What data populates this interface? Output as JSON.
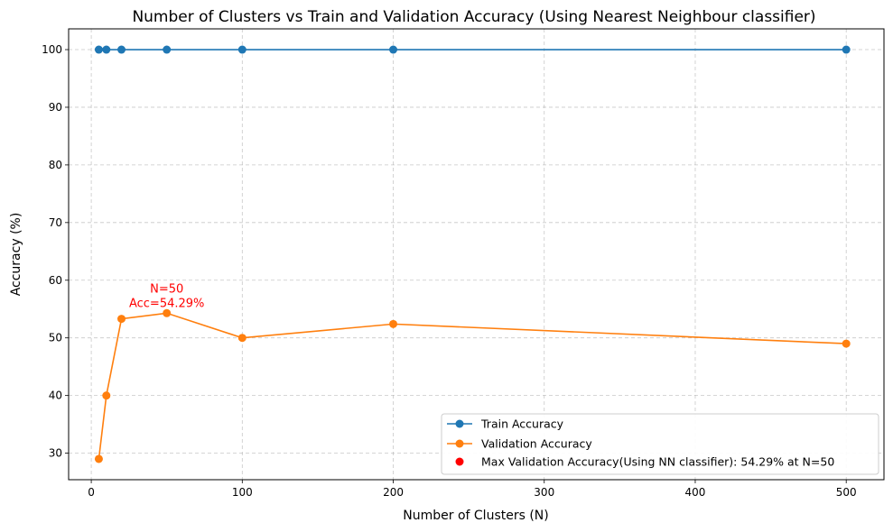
{
  "chart_data": {
    "type": "line",
    "title": "Number of Clusters vs Train and Validation Accuracy (Using Nearest Neighbour classifier)",
    "xlabel": "Number of Clusters (N)",
    "ylabel": "Accuracy (%)",
    "xlim": [
      -15,
      525
    ],
    "ylim": [
      25.4,
      103.6
    ],
    "xticks": [
      0,
      100,
      200,
      300,
      400,
      500
    ],
    "yticks": [
      30,
      40,
      50,
      60,
      70,
      80,
      90,
      100
    ],
    "grid": true,
    "legend_position": "bottom-right",
    "x": [
      5,
      10,
      20,
      50,
      100,
      200,
      500
    ],
    "series": [
      {
        "name": "Train Accuracy",
        "color": "#1f77b4",
        "values": [
          100,
          100,
          100,
          100,
          100,
          100,
          100
        ]
      },
      {
        "name": "Validation Accuracy",
        "color": "#ff7f0e",
        "values": [
          29,
          40,
          53.3,
          54.29,
          50,
          52.4,
          49
        ]
      }
    ],
    "highlight": {
      "name": "Max Validation Accuracy(Using NN classifier): 54.29% at N=50",
      "color": "#ff0000",
      "x": 50,
      "y": 54.29,
      "annotation": [
        "N=50",
        "Acc=54.29%"
      ]
    }
  }
}
